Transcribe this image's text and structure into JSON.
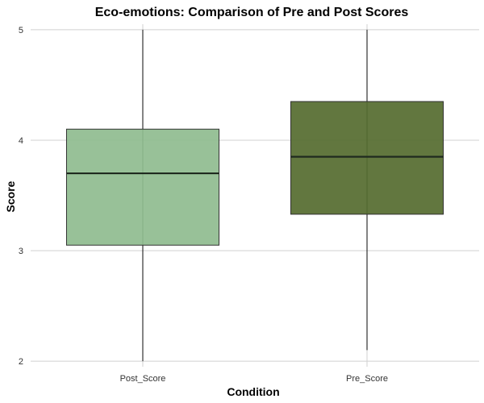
{
  "chart_data": {
    "type": "box",
    "title": "Eco-emotions: Comparison of Pre and Post Scores",
    "xlabel": "Condition",
    "ylabel": "Score",
    "ylim": [
      1.95,
      5.05
    ],
    "yticks": [
      2,
      3,
      4,
      5
    ],
    "grid": true,
    "legend": "none",
    "categories": [
      "Post_Score",
      "Pre_Score"
    ],
    "boxes": [
      {
        "category": "Post_Score",
        "min": 2.0,
        "q1": 3.05,
        "median": 3.7,
        "q3": 4.1,
        "max": 5.0,
        "color": "#8fbc8f"
      },
      {
        "category": "Pre_Score",
        "min": 2.1,
        "q1": 3.33,
        "median": 3.85,
        "q3": 4.35,
        "max": 5.0,
        "color": "#556b2f"
      }
    ]
  }
}
